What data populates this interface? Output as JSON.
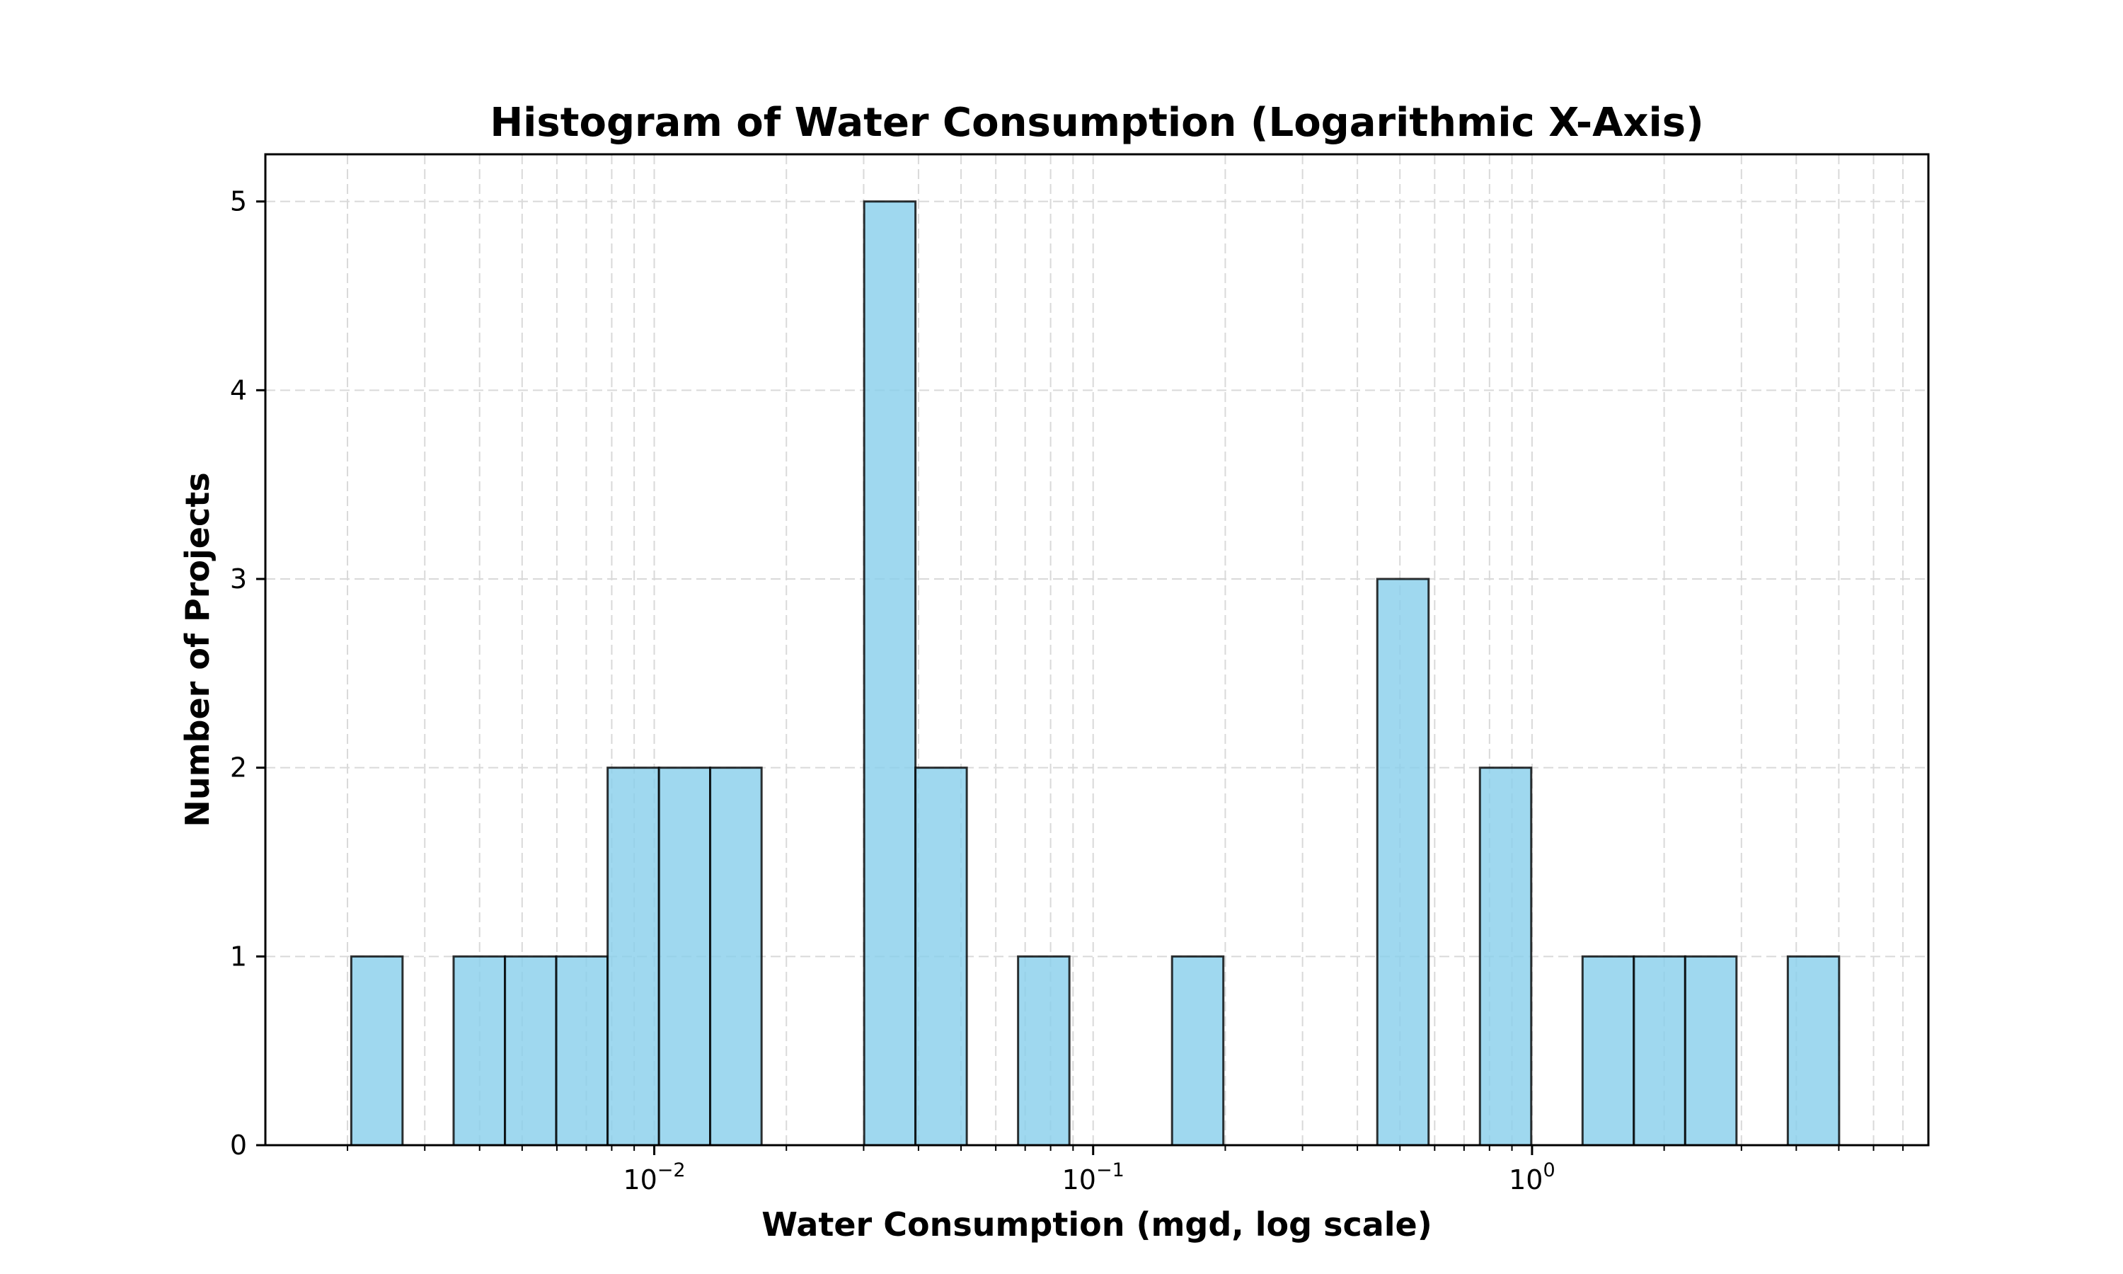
{
  "chart_data": {
    "type": "bar",
    "title": "Histogram of Water Consumption (Logarithmic X-Axis)",
    "xlabel": "Water Consumption (mgd, log scale)",
    "ylabel": "Number of Projects",
    "x_scale": "log",
    "xlim": [
      0.0013,
      8.0
    ],
    "ylim": [
      0,
      5.25
    ],
    "grid": true,
    "bar_color": "#87CEEB",
    "bin_edges": [
      0.00204,
      0.00267,
      0.00349,
      0.00457,
      0.00598,
      0.00783,
      0.01025,
      0.01341,
      0.01756,
      0.02298,
      0.03008,
      0.03937,
      0.05153,
      0.06745,
      0.08829,
      0.11557,
      0.15127,
      0.198,
      0.25917,
      0.33924,
      0.44404,
      0.58122,
      0.76078,
      0.99581,
      1.30345,
      1.70614,
      2.23322,
      2.92314,
      3.82621,
      5.0083
    ],
    "counts": [
      1,
      0,
      1,
      1,
      1,
      2,
      2,
      2,
      0,
      0,
      5,
      2,
      0,
      1,
      0,
      0,
      1,
      0,
      0,
      0,
      3,
      0,
      2,
      0,
      1,
      1,
      1,
      0,
      1
    ],
    "y_ticks": [
      {
        "value": 0,
        "label": "0"
      },
      {
        "value": 1,
        "label": "1"
      },
      {
        "value": 2,
        "label": "2"
      },
      {
        "value": 3,
        "label": "3"
      },
      {
        "value": 4,
        "label": "4"
      },
      {
        "value": 5,
        "label": "5"
      }
    ],
    "x_ticks": [
      {
        "value": 0.01,
        "base": "10",
        "exp": "−2"
      },
      {
        "value": 0.1,
        "base": "10",
        "exp": "−1"
      },
      {
        "value": 1,
        "base": "10",
        "exp": "0"
      }
    ]
  }
}
